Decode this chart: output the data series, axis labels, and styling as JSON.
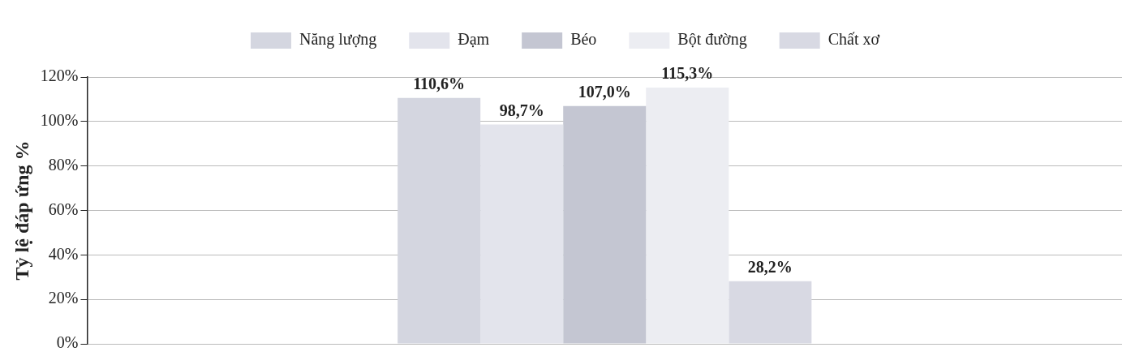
{
  "chart_data": {
    "type": "bar",
    "ylabel": "Tỷ lệ đáp ứng %",
    "categories": [
      null
    ],
    "series": [
      {
        "name": "Năng lượng",
        "color": "#d4d6e0",
        "values": [
          110.6
        ],
        "value_labels": [
          "110,6%"
        ]
      },
      {
        "name": "Đạm",
        "color": "#e3e4ec",
        "values": [
          98.7
        ],
        "value_labels": [
          "98,7%"
        ]
      },
      {
        "name": "Béo",
        "color": "#c4c6d2",
        "values": [
          107.0
        ],
        "value_labels": [
          "107,0%"
        ]
      },
      {
        "name": "Bột đường",
        "color": "#ecedf2",
        "values": [
          115.3
        ],
        "value_labels": [
          "115,3%"
        ]
      },
      {
        "name": "Chất xơ",
        "color": "#d8d9e3",
        "values": [
          28.2
        ],
        "value_labels": [
          "28,2%"
        ]
      }
    ],
    "ylim": [
      0,
      120
    ],
    "yticks": [
      {
        "value": 0,
        "label": "0%"
      },
      {
        "value": 20,
        "label": "20%"
      },
      {
        "value": 40,
        "label": "40%"
      },
      {
        "value": 60,
        "label": "60%"
      },
      {
        "value": 80,
        "label": "80%"
      },
      {
        "value": 100,
        "label": "100%"
      },
      {
        "value": 120,
        "label": "120%"
      }
    ],
    "grid": "y",
    "legend": "top",
    "tick_labels": "y"
  }
}
